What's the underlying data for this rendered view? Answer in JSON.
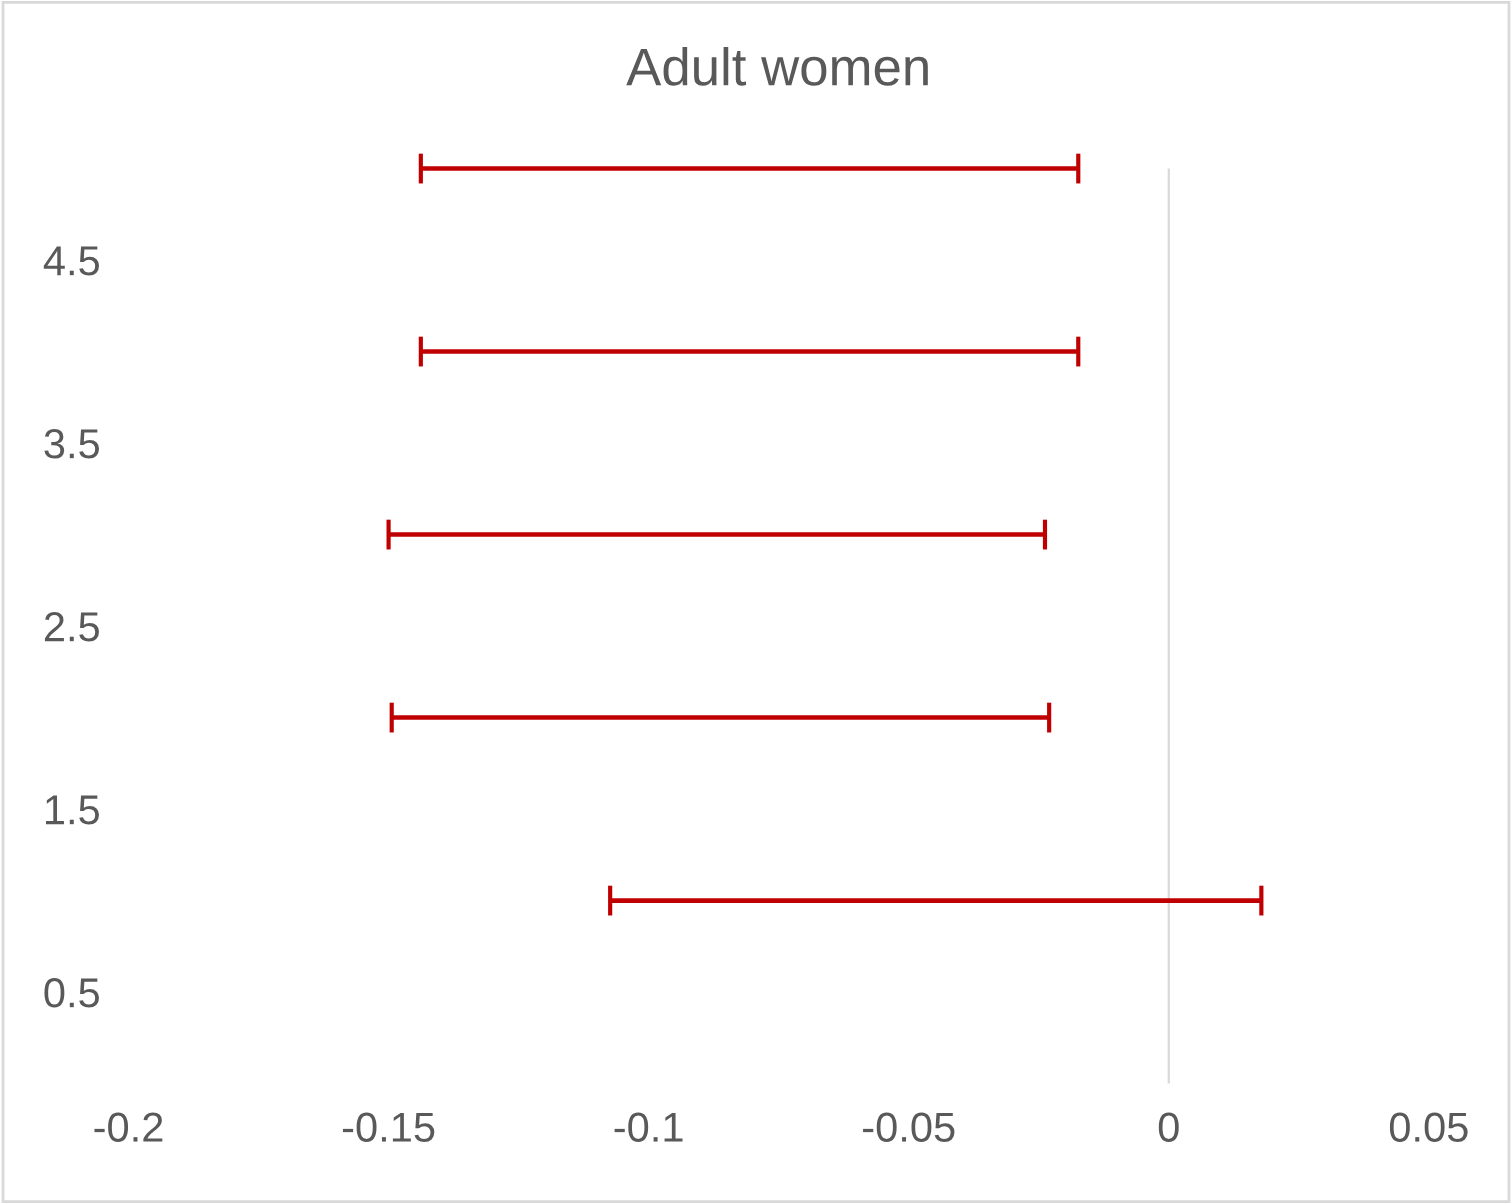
{
  "chart_data": {
    "type": "bar",
    "orientation": "horizontal",
    "title": "Adult women",
    "x": [
      1,
      2,
      3,
      4,
      5
    ],
    "base": [
      -0.1074,
      -0.1494,
      -0.15,
      -0.1438,
      -0.1438
    ],
    "values": [
      0.1252,
      0.1264,
      0.1262,
      0.1264,
      0.1264
    ],
    "color": "#c00000",
    "xlim": [
      -0.2,
      0.05
    ],
    "xticks": [
      -0.2,
      -0.15,
      -0.1,
      -0.05,
      0,
      0.05
    ],
    "ylim": [
      0,
      5
    ],
    "yticks": [
      0.5,
      1.5,
      2.5,
      3.5,
      4.5
    ],
    "ref_lines": [
      {
        "axis": "x",
        "value": 0,
        "color": "#d9d9d9"
      }
    ],
    "grid": false
  }
}
